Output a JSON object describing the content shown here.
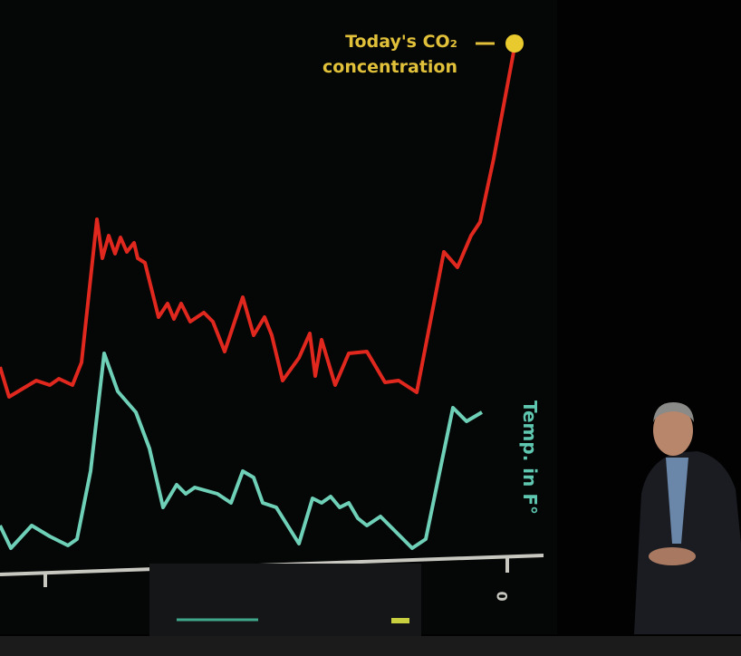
{
  "annotation": {
    "lines": [
      "Today's CO₂",
      "concentration"
    ]
  },
  "axis_label": "Temp. in F°",
  "tick_label": "0"
}
